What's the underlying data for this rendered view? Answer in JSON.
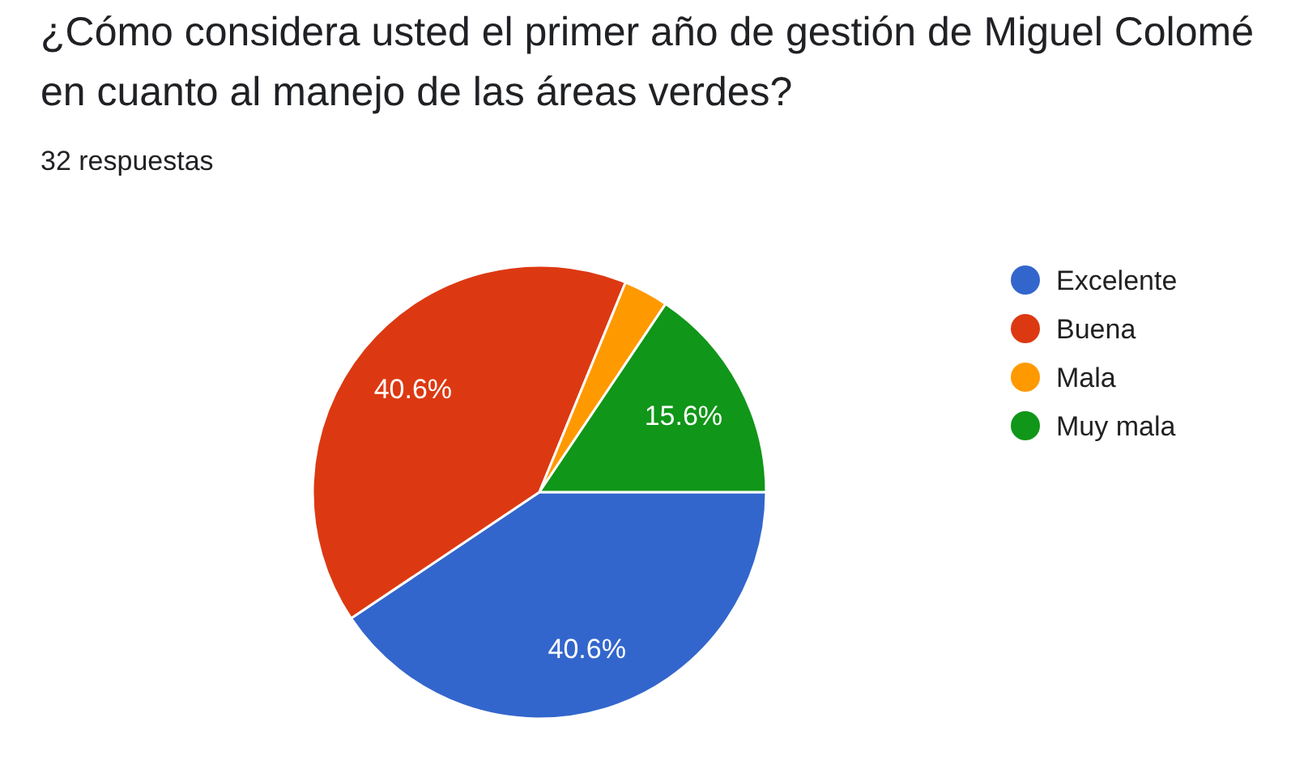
{
  "chart_data": {
    "type": "pie",
    "title": "¿Cómo considera usted el primer año de gestión de Miguel Colomé en cuanto al manejo de las áreas verdes?",
    "subtitle": "32 respuestas",
    "categories": [
      "Excelente",
      "Buena",
      "Mala",
      "Muy mala"
    ],
    "values": [
      40.6,
      40.6,
      3.2,
      15.6
    ],
    "colors": [
      "#3366cc",
      "#dc3912",
      "#ff9900",
      "#109618"
    ],
    "value_labels": [
      "40.6%",
      "40.6%",
      null,
      "15.6%"
    ],
    "legend": "right"
  }
}
